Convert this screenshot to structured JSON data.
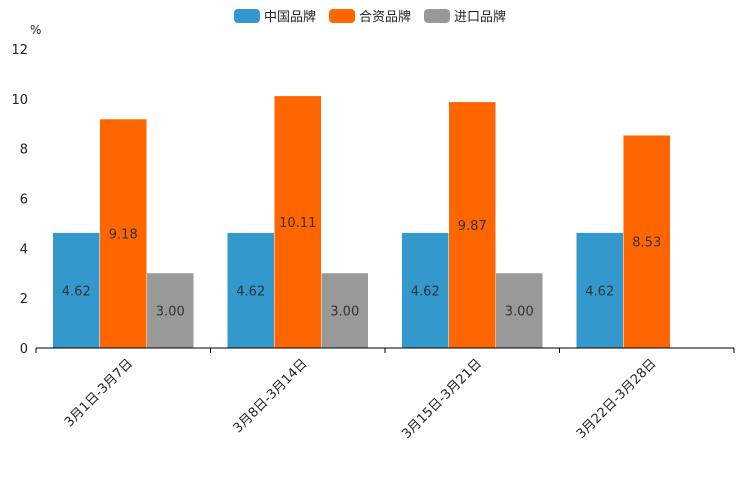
{
  "chart_data": {
    "type": "bar",
    "title": "",
    "xlabel": "",
    "ylabel": "%",
    "ylim": [
      0,
      12
    ],
    "yticks": [
      0,
      2,
      4,
      6,
      8,
      10,
      12
    ],
    "grid": false,
    "legend_position": "top-center",
    "categories": [
      "3月1日-3月7日",
      "3月8日-3月14日",
      "3月15日-3月21日",
      "3月22日-3月28日"
    ],
    "series": [
      {
        "name": "中国品牌",
        "color": "#3399cc",
        "values": [
          4.62,
          4.62,
          4.62,
          4.62
        ]
      },
      {
        "name": "合资品牌",
        "color": "#ff6600",
        "values": [
          9.18,
          10.11,
          9.87,
          8.53
        ]
      },
      {
        "name": "进口品牌",
        "color": "#999999",
        "values": [
          3.0,
          3.0,
          3.0,
          null
        ]
      }
    ]
  }
}
